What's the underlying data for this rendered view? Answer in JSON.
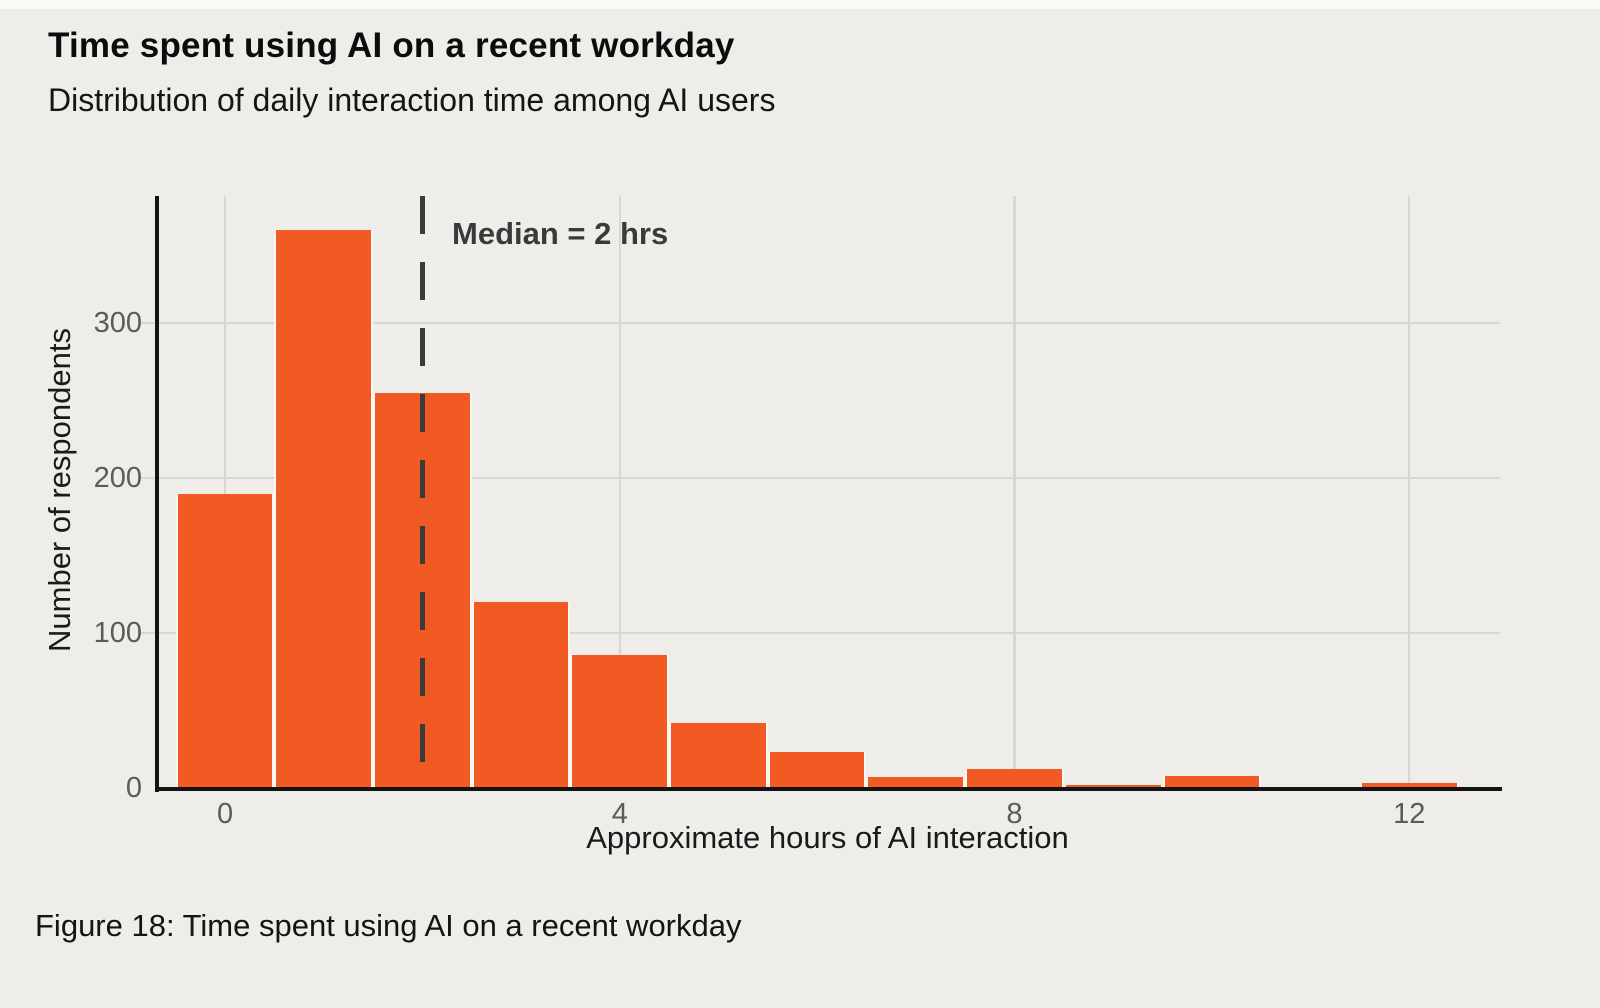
{
  "page": {
    "title": "Time spent using AI on a recent workday",
    "subtitle": "Distribution of daily interaction time among AI users",
    "caption": "Figure 18: Time spent using AI on a recent workday"
  },
  "chart_data": {
    "type": "bar",
    "title": "Time spent using AI on a recent workday",
    "subtitle": "Distribution of daily interaction time among AI users",
    "xlabel": "Approximate hours of AI interaction",
    "ylabel": "Number of respondents",
    "x": [
      0,
      1,
      2,
      3,
      4,
      5,
      6,
      7,
      8,
      9,
      10,
      11,
      12
    ],
    "values": [
      190,
      360,
      255,
      120,
      86,
      42,
      23,
      7,
      12,
      2,
      8,
      0,
      3
    ],
    "bin_width_hours": 1,
    "x_ticks": [
      0,
      4,
      8,
      12
    ],
    "y_ticks": [
      0,
      100,
      200,
      300
    ],
    "xlim": [
      -0.71,
      12.92
    ],
    "ylim": [
      0,
      382
    ],
    "grid": true,
    "legend": "none",
    "annotation": {
      "label": "Median = 2 hrs",
      "x": 2
    },
    "colors": {
      "bar": "#F25A24",
      "background": "#EEEDE9",
      "gridline": "#D8D7D2",
      "axis": "#141414",
      "tick_label": "#5B5B5B",
      "median": "#3A3A3A"
    }
  }
}
